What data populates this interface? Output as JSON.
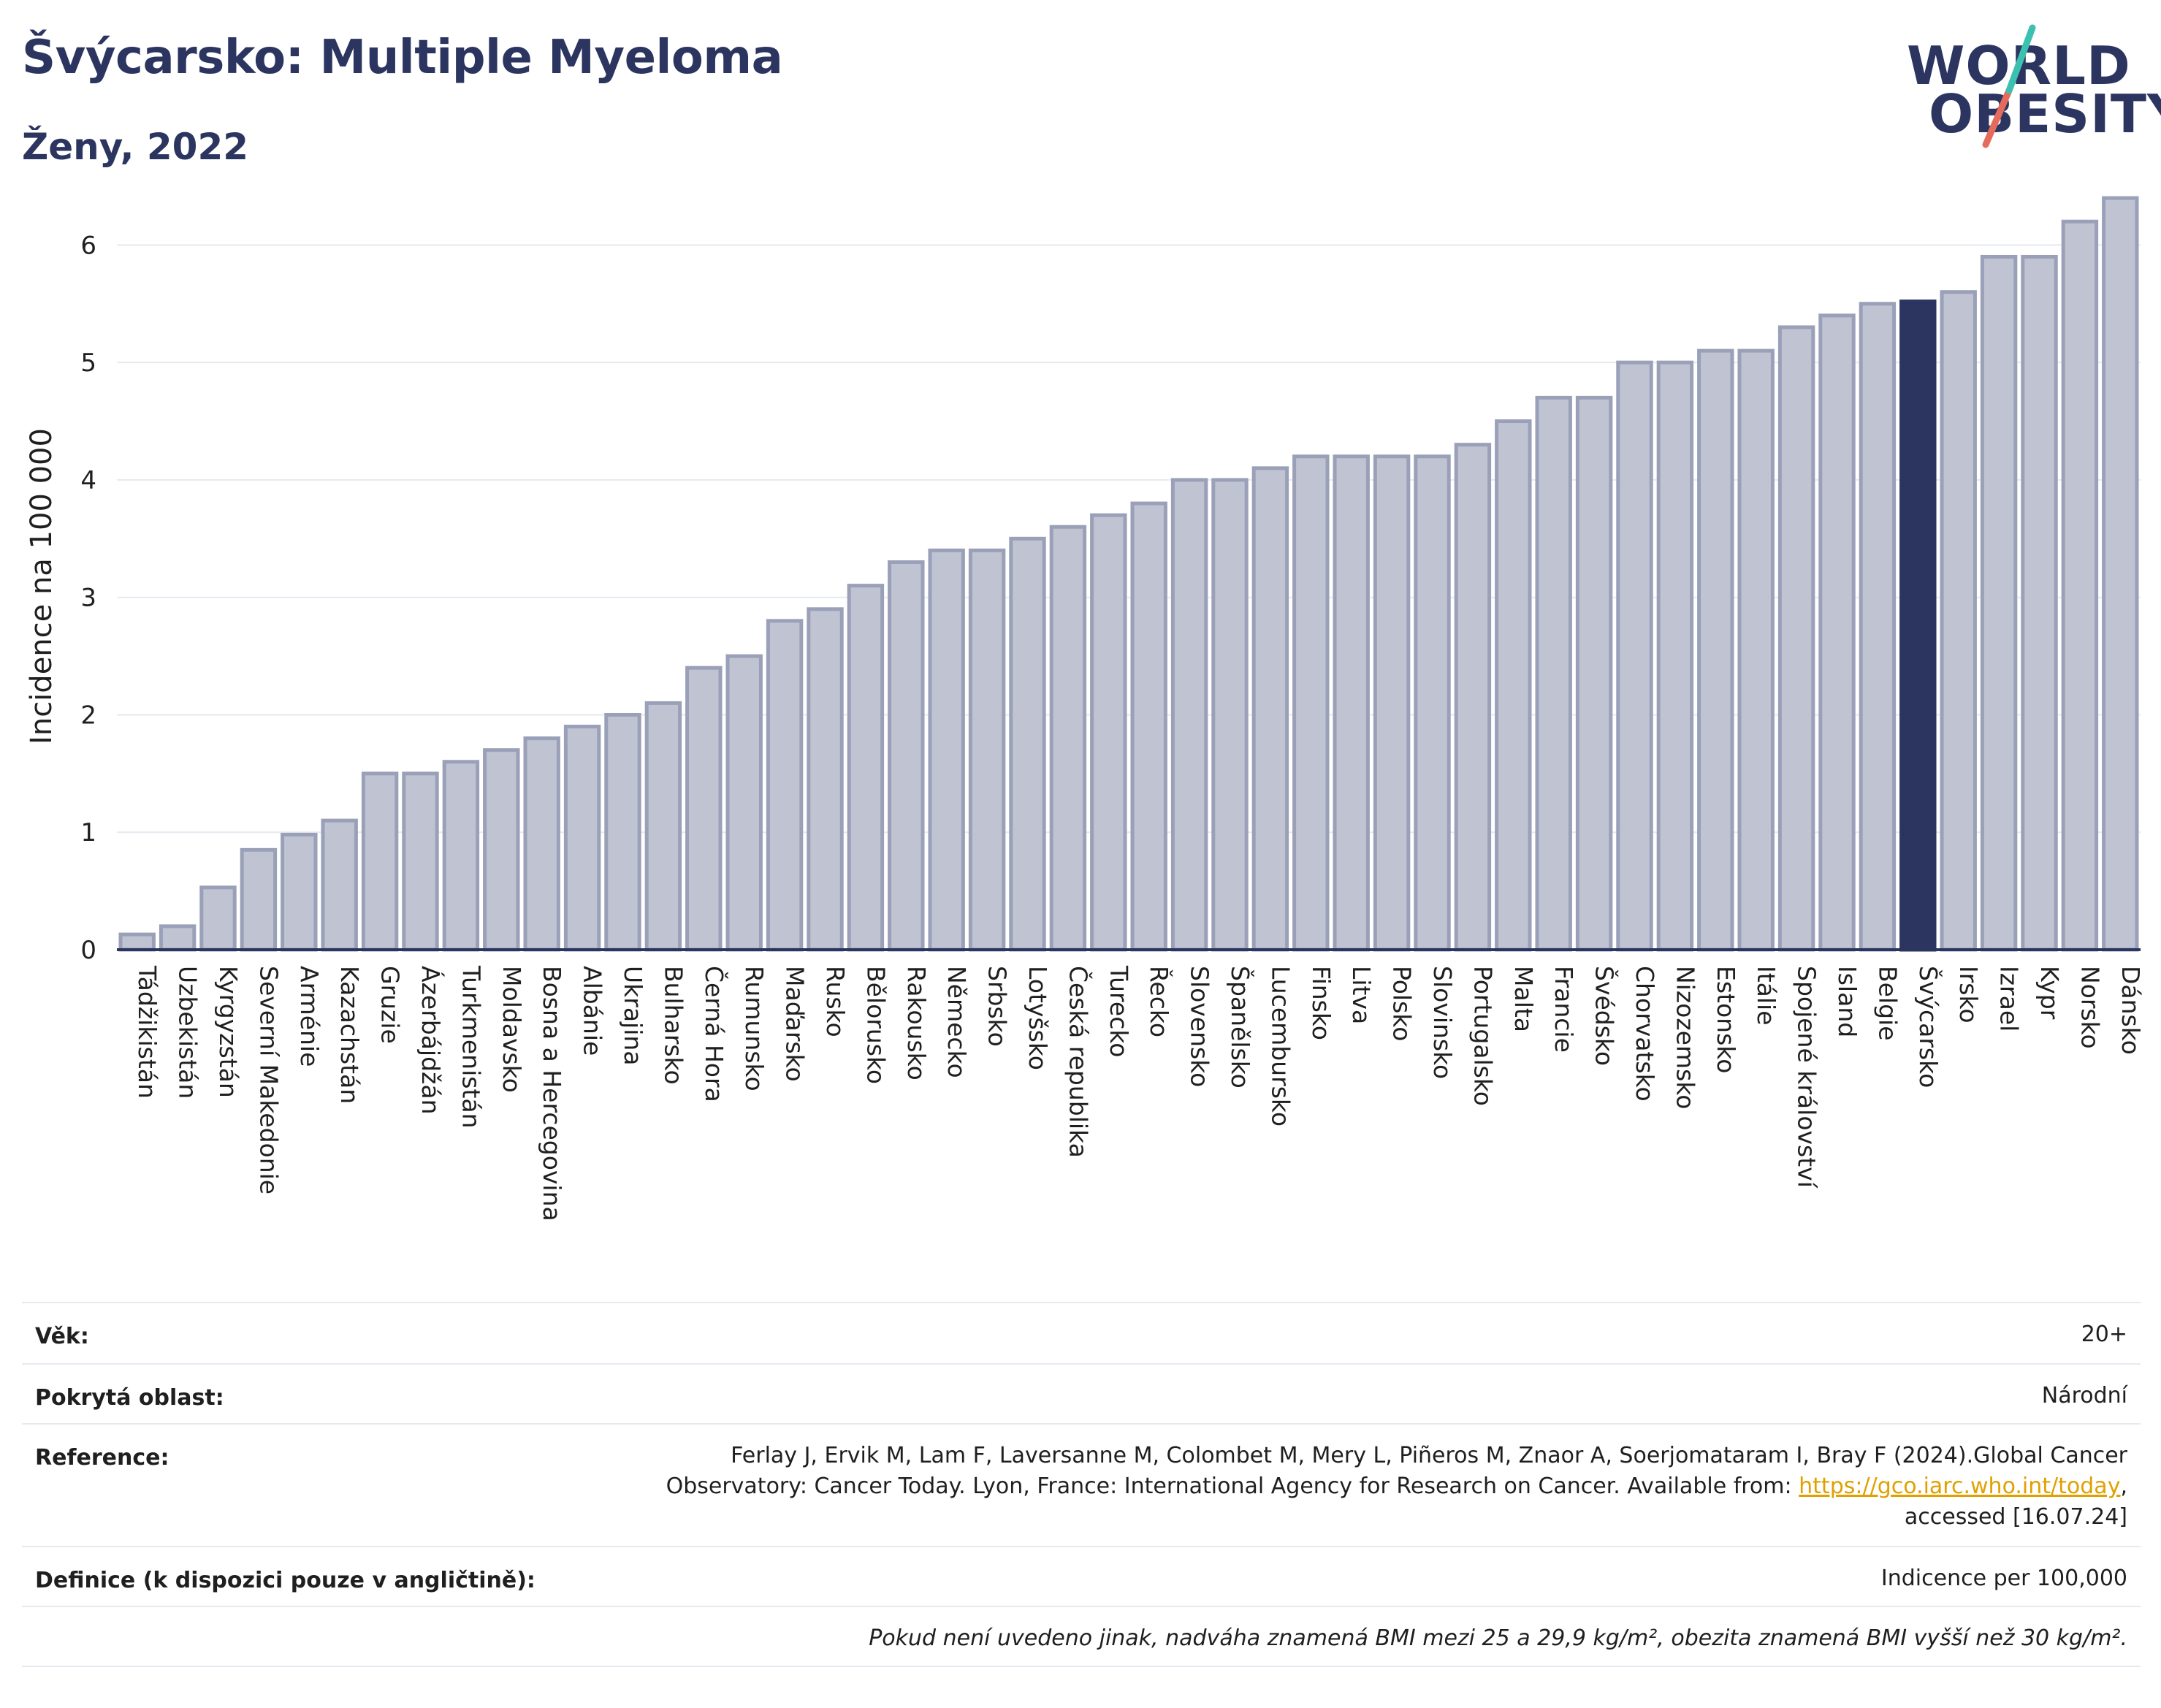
{
  "header": {
    "title": "Švýcarsko: Multiple Myeloma",
    "subtitle": "Ženy, 2022"
  },
  "logo": {
    "line1": "WORLD",
    "line2": "OBESITY"
  },
  "chart_data": {
    "type": "bar",
    "ylabel": "Incidence na 100 000",
    "ylim": [
      0,
      6.5
    ],
    "yticks": [
      0,
      1,
      2,
      3,
      4,
      5,
      6
    ],
    "grid": true,
    "highlight_category": "Švýcarsko",
    "colors": {
      "bar": "#bfc3d2",
      "bar_border": "#9aa0b8",
      "highlight": "#2b3560",
      "axis": "#2b3560",
      "grid": "#e6e9ef"
    },
    "categories": [
      "Tádžikistán",
      "Uzbekistán",
      "Kyrgyzstán",
      "Severní Makedonie",
      "Arménie",
      "Kazachstán",
      "Gruzie",
      "Ázerbájdžán",
      "Turkmenistán",
      "Moldavsko",
      "Bosna a Hercegovina",
      "Albánie",
      "Ukrajina",
      "Bulharsko",
      "Černá Hora",
      "Rumunsko",
      "Maďarsko",
      "Rusko",
      "Bělorusko",
      "Rakousko",
      "Německo",
      "Srbsko",
      "Lotyšsko",
      "Česká republika",
      "Turecko",
      "Řecko",
      "Slovensko",
      "Španělsko",
      "Lucembursko",
      "Finsko",
      "Litva",
      "Polsko",
      "Slovinsko",
      "Portugalsko",
      "Malta",
      "Francie",
      "Švédsko",
      "Chorvatsko",
      "Nizozemsko",
      "Estonsko",
      "Itálie",
      "Spojené království",
      "Island",
      "Belgie",
      "Švýcarsko",
      "Irsko",
      "Izrael",
      "Kypr",
      "Norsko",
      "Dánsko"
    ],
    "values": [
      0.13,
      0.2,
      0.53,
      0.85,
      0.98,
      1.1,
      1.5,
      1.5,
      1.6,
      1.7,
      1.8,
      1.9,
      2.0,
      2.1,
      2.4,
      2.5,
      2.8,
      2.9,
      3.1,
      3.3,
      3.4,
      3.4,
      3.5,
      3.6,
      3.7,
      3.8,
      4.0,
      4.0,
      4.1,
      4.2,
      4.2,
      4.2,
      4.2,
      4.3,
      4.5,
      4.7,
      4.7,
      5.0,
      5.0,
      5.1,
      5.1,
      5.3,
      5.4,
      5.5,
      5.52,
      5.6,
      5.9,
      5.9,
      6.2,
      6.4
    ]
  },
  "info": {
    "age_label": "Věk:",
    "age_value": "20+",
    "area_label": "Pokrytá oblast:",
    "area_value": "Národní",
    "ref_label": "Reference:",
    "ref_line1": "Ferlay J, Ervik M, Lam F, Laversanne M, Colombet M, Mery L, Piñeros M, Znaor A, Soerjomataram I, Bray F (2024).Global Cancer",
    "ref_line2": "Observatory: Cancer Today. Lyon, France: International Agency for Research on Cancer. Available from: ",
    "ref_link": "https://gco.iarc.who.int/today",
    "ref_line2_end": ",",
    "ref_line3": "accessed [16.07.24]",
    "def_label": "Definice (k dispozici pouze v angličtině):",
    "def_value": "Indicence per 100,000",
    "note": "Pokud není uvedeno jinak, nadváha znamená BMI mezi 25 a 29,9 kg/m², obezita znamená BMI vyšší než 30 kg/m²."
  }
}
